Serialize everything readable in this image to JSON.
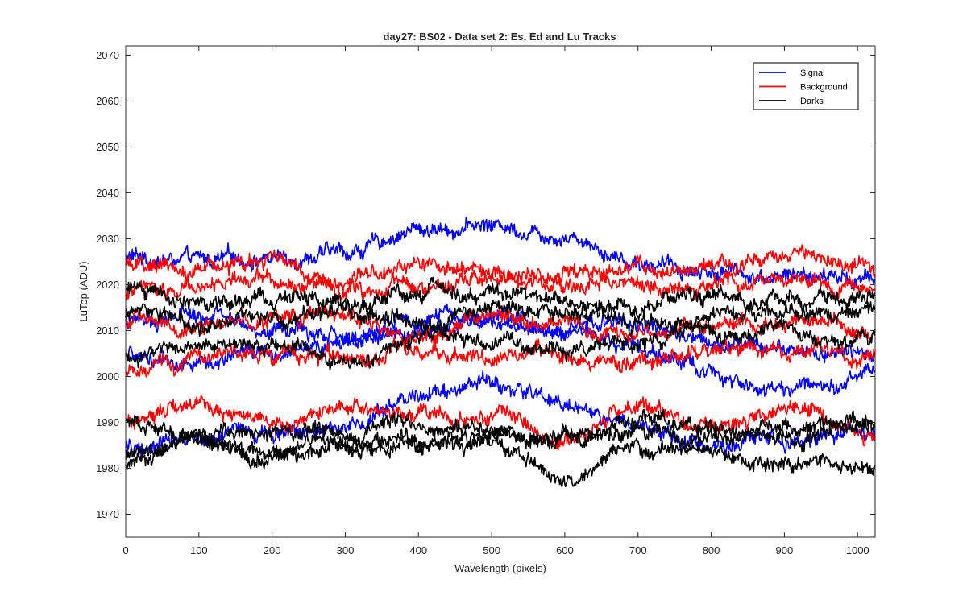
{
  "chart_data": {
    "type": "line",
    "title": "day27: BS02 - Data set 2: Es, Ed and Lu Tracks",
    "xlabel": "Wavelength (pixels)",
    "ylabel": "LuTop (ADU)",
    "xlim": [
      0,
      1024
    ],
    "ylim": [
      1965,
      2072
    ],
    "xticks": [
      0,
      100,
      200,
      300,
      400,
      500,
      600,
      700,
      800,
      900,
      1000
    ],
    "yticks": [
      1970,
      1980,
      1990,
      2000,
      2010,
      2020,
      2030,
      2040,
      2050,
      2060,
      2070
    ],
    "grid": false,
    "legend_position": "top-right",
    "colors": {
      "Signal": "#0000ff",
      "Background": "#ff0000",
      "Darks": "#000000"
    },
    "legend": [
      "Signal",
      "Background",
      "Darks"
    ],
    "noise_amplitude": 1.3,
    "series": [
      {
        "name": "Signal",
        "x": [
          0,
          100,
          200,
          300,
          400,
          500,
          600,
          700,
          800,
          900,
          1024
        ],
        "values": [
          2026,
          2025,
          2026,
          2027,
          2032,
          2033,
          2031,
          2025,
          2023,
          2022,
          2021
        ]
      },
      {
        "name": "Signal",
        "x": [
          0,
          100,
          200,
          300,
          400,
          500,
          600,
          700,
          800,
          900,
          1024
        ],
        "values": [
          2004,
          2003,
          2005,
          2007,
          2013,
          2013,
          2010,
          2007,
          2001,
          1997,
          2001
        ]
      },
      {
        "name": "Signal",
        "x": [
          0,
          100,
          200,
          300,
          400,
          500,
          600,
          700,
          800,
          900,
          1024
        ],
        "values": [
          2012,
          2013,
          2010,
          2008,
          2010,
          2012,
          2011,
          2012,
          2008,
          2006,
          2005
        ]
      },
      {
        "name": "Signal",
        "x": [
          0,
          100,
          200,
          300,
          400,
          500,
          600,
          700,
          800,
          900,
          1024
        ],
        "values": [
          1985,
          1988,
          1988,
          1989,
          1997,
          1998,
          1994,
          1989,
          1985,
          1986,
          1987
        ]
      },
      {
        "name": "Background",
        "x": [
          0,
          100,
          200,
          300,
          400,
          500,
          600,
          700,
          800,
          900,
          1024
        ],
        "values": [
          2024,
          2023,
          2025,
          2021,
          2023,
          2023,
          2022,
          2023,
          2023,
          2026,
          2023
        ]
      },
      {
        "name": "Background",
        "x": [
          0,
          100,
          200,
          300,
          400,
          500,
          600,
          700,
          800,
          900,
          1024
        ],
        "values": [
          2018,
          2020,
          2021,
          2019,
          2020,
          2021,
          2020,
          2020,
          2019,
          2021,
          2019
        ]
      },
      {
        "name": "Background",
        "x": [
          0,
          100,
          200,
          300,
          400,
          500,
          600,
          700,
          800,
          900,
          1024
        ],
        "values": [
          2012,
          2011,
          2013,
          2012,
          2008,
          2013,
          2011,
          2009,
          2011,
          2012,
          2010
        ]
      },
      {
        "name": "Background",
        "x": [
          0,
          100,
          200,
          300,
          400,
          500,
          600,
          700,
          800,
          900,
          1024
        ],
        "values": [
          2002,
          2004,
          2005,
          2004,
          2005,
          2004,
          2005,
          2003,
          2006,
          2005,
          2004
        ]
      },
      {
        "name": "Background",
        "x": [
          0,
          100,
          200,
          300,
          400,
          500,
          600,
          700,
          800,
          900,
          1024
        ],
        "values": [
          1991,
          1995,
          1990,
          1993,
          1991,
          1992,
          1986,
          1993,
          1989,
          1993,
          1988
        ]
      },
      {
        "name": "Darks",
        "x": [
          0,
          100,
          200,
          300,
          400,
          500,
          600,
          700,
          800,
          900,
          1024
        ],
        "values": [
          2019,
          2016,
          2017,
          2015,
          2019,
          2018,
          2016,
          2015,
          2017,
          2016,
          2017
        ]
      },
      {
        "name": "Darks",
        "x": [
          0,
          100,
          200,
          300,
          400,
          500,
          600,
          700,
          800,
          900,
          1024
        ],
        "values": [
          2014,
          2012,
          2013,
          2014,
          2012,
          2015,
          2014,
          2012,
          2013,
          2014,
          2014
        ]
      },
      {
        "name": "Darks",
        "x": [
          0,
          100,
          200,
          300,
          400,
          500,
          600,
          700,
          800,
          900,
          1024
        ],
        "values": [
          2005,
          2007,
          2008,
          2003,
          2009,
          2007,
          2006,
          2007,
          2009,
          2010,
          2007
        ]
      },
      {
        "name": "Darks",
        "x": [
          0,
          100,
          200,
          300,
          400,
          500,
          600,
          700,
          800,
          900,
          1024
        ],
        "values": [
          1990,
          1987,
          1988,
          1988,
          1990,
          1988,
          1987,
          1990,
          1989,
          1986,
          1991
        ]
      },
      {
        "name": "Darks",
        "x": [
          0,
          100,
          200,
          300,
          400,
          500,
          600,
          700,
          800,
          900,
          1024
        ],
        "values": [
          1983,
          1985,
          1984,
          1985,
          1986,
          1987,
          1987,
          1988,
          1986,
          1989,
          1990
        ]
      },
      {
        "name": "Darks",
        "x": [
          0,
          100,
          200,
          300,
          400,
          500,
          600,
          700,
          800,
          900,
          1024
        ],
        "values": [
          1981,
          1986,
          1982,
          1986,
          1985,
          1984,
          1977,
          1985,
          1983,
          1981,
          1980
        ]
      }
    ]
  }
}
